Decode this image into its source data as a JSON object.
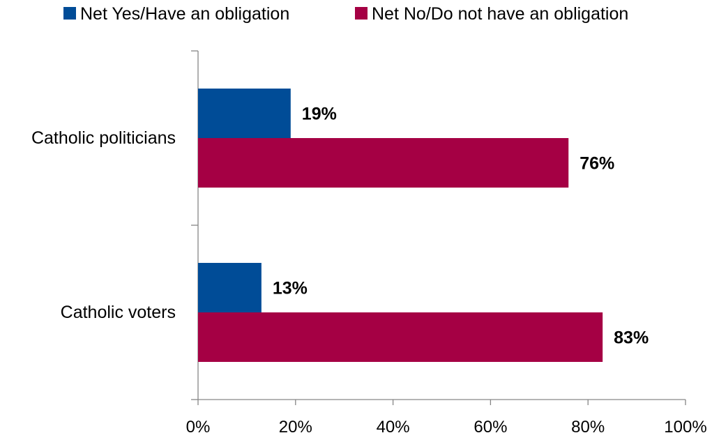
{
  "chart_data": {
    "type": "bar",
    "orientation": "horizontal",
    "categories": [
      "Catholic politicians",
      "Catholic voters"
    ],
    "series": [
      {
        "name": "Net Yes/Have an obligation",
        "values": [
          19,
          13
        ],
        "labels": [
          "19%",
          "13%"
        ]
      },
      {
        "name": "Net No/Do not have an obligation",
        "values": [
          76,
          83
        ],
        "labels": [
          "76%",
          "83%"
        ]
      }
    ],
    "xlim": [
      0,
      100
    ],
    "xticks": [
      0,
      20,
      40,
      60,
      80,
      100
    ],
    "xtick_labels": [
      "0%",
      "20%",
      "40%",
      "60%",
      "80%",
      "100%"
    ],
    "grid": false,
    "legend_position": "top",
    "colors": [
      "#004C97",
      "#A50044"
    ]
  }
}
